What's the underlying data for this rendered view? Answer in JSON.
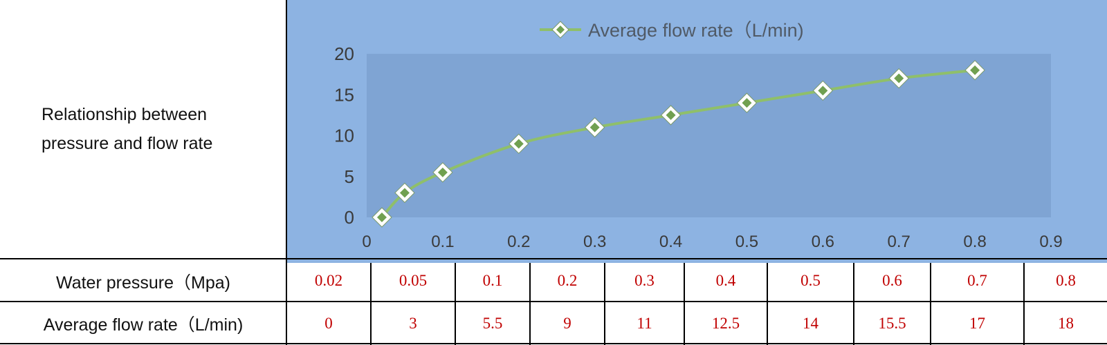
{
  "table": {
    "title_line1": "Relationship between",
    "title_line2": "pressure and flow rate",
    "row1_label": "Water pressure（Mpa)",
    "row2_label": "Average flow rate（L/min)",
    "pressure_cells": [
      "0.02",
      "0.05",
      "0.1",
      "0.2",
      "0.3",
      "0.4",
      "0.5",
      "0.6",
      "0.7",
      "0.8"
    ],
    "flow_cells": [
      "0",
      "3",
      "5.5",
      "9",
      "11",
      "12.5",
      "14",
      "15.5",
      "17",
      "18"
    ]
  },
  "chart_data": {
    "type": "line",
    "title": "",
    "xlabel": "",
    "ylabel": "",
    "x": [
      0.02,
      0.05,
      0.1,
      0.2,
      0.3,
      0.4,
      0.5,
      0.6,
      0.7,
      0.8
    ],
    "series": [
      {
        "name": "Average flow rate（L/min)",
        "values": [
          0,
          3,
          5.5,
          9,
          11,
          12.5,
          14,
          15.5,
          17,
          18
        ]
      }
    ],
    "xlim": [
      0,
      0.9
    ],
    "ylim": [
      0,
      20
    ],
    "xticks": [
      "0",
      "0.1",
      "0.2",
      "0.3",
      "0.4",
      "0.5",
      "0.6",
      "0.7",
      "0.8",
      "0.9"
    ],
    "yticks": [
      "0",
      "5",
      "10",
      "15",
      "20"
    ],
    "legend_position": "top",
    "grid": false,
    "colors": {
      "background": "#8db3e2",
      "plot_area": "#7fa4d3",
      "line": "#8fbf6a",
      "marker": "#70a050",
      "marker_border": "#ffffff"
    }
  }
}
